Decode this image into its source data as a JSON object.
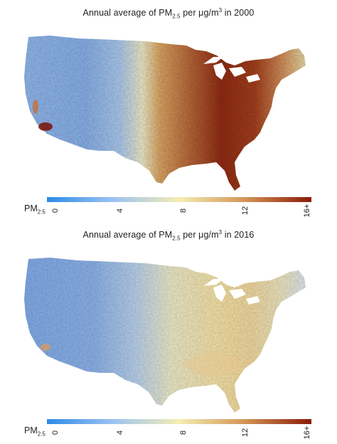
{
  "panels": [
    {
      "title_prefix": "Annual average of PM",
      "title_sub": "2.5",
      "title_mid": " per μg/m",
      "title_sup": "3",
      "title_suffix": " in 2000",
      "year": "2000"
    },
    {
      "title_prefix": "Annual average of PM",
      "title_sub": "2.5",
      "title_mid": " per μg/m",
      "title_sup": "3",
      "title_suffix": " in 2016",
      "year": "2016"
    }
  ],
  "colorbar": {
    "label_main": "PM",
    "label_sub": "2.5",
    "ticks": [
      "0",
      "4",
      "8",
      "12",
      "16+"
    ],
    "colors": [
      "#2b8be8",
      "#9cc3f0",
      "#f4edb4",
      "#d39455",
      "#8b1a0a"
    ]
  }
}
